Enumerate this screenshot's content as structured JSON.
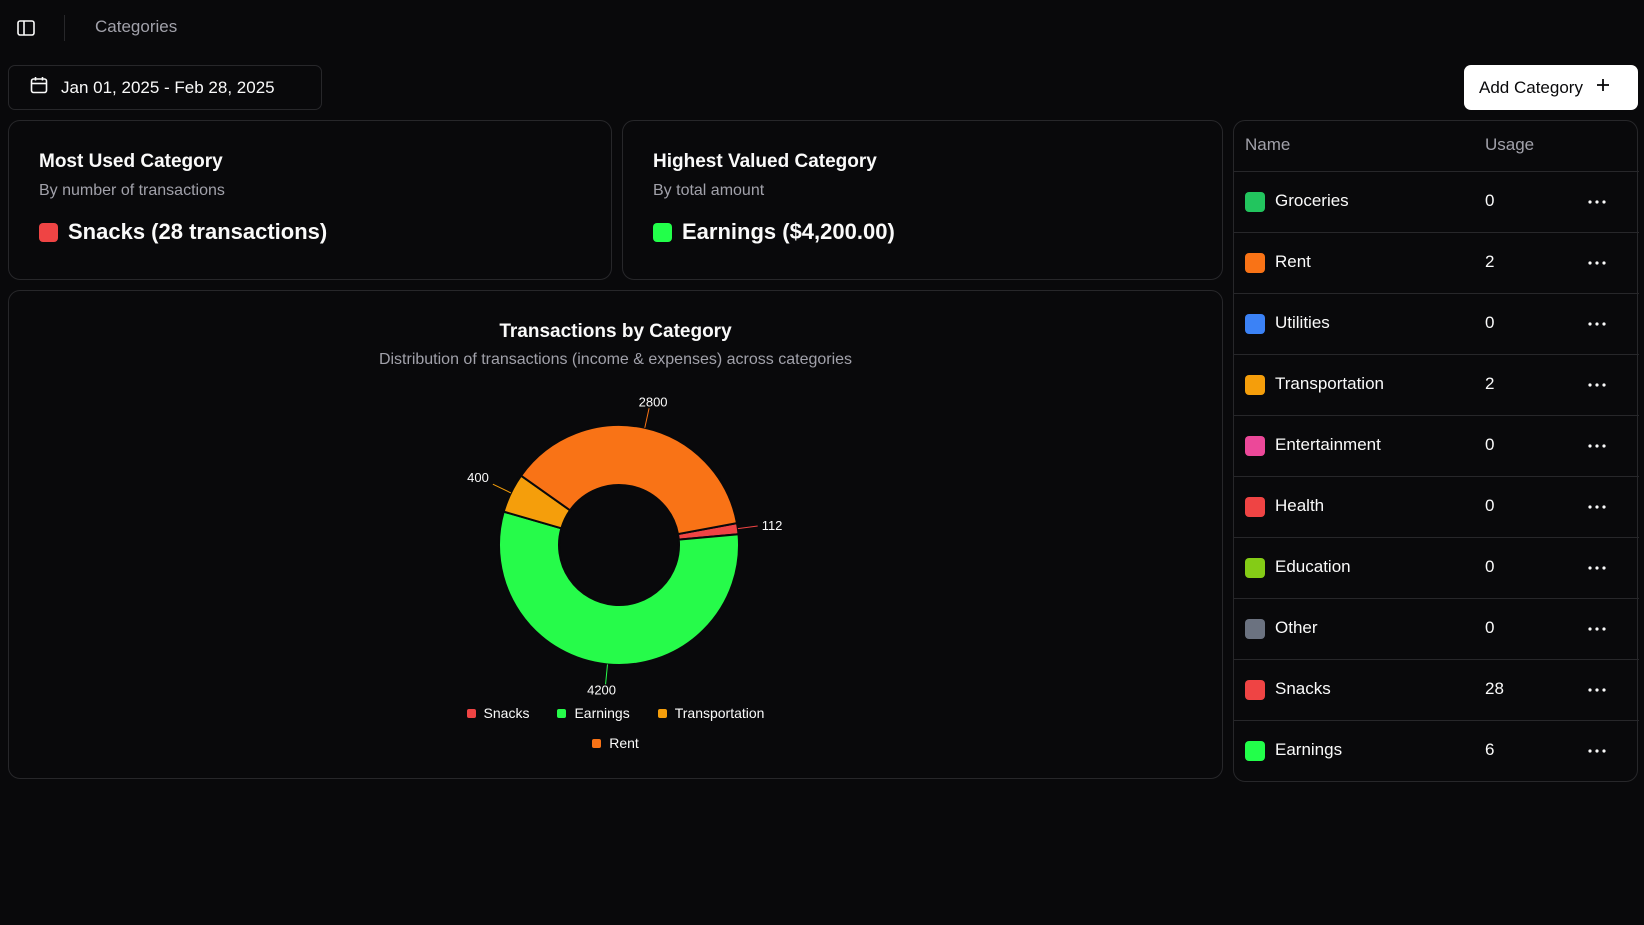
{
  "header": {
    "breadcrumb": "Categories"
  },
  "toolbar": {
    "date_range": "Jan 01, 2025 - Feb 28, 2025",
    "add_label": "Add Category"
  },
  "most_used": {
    "title": "Most Used Category",
    "subtitle": "By number of transactions",
    "value": "Snacks (28 transactions)",
    "color": "#ef4444"
  },
  "highest_valued": {
    "title": "Highest Valued Category",
    "subtitle": "By total amount",
    "value": "Earnings ($4,200.00)",
    "color": "#22ff4a"
  },
  "chart": {
    "title": "Transactions by Category",
    "subtitle": "Distribution of transactions (income & expenses) across categories"
  },
  "chart_data": {
    "type": "pie",
    "donut": true,
    "title": "Transactions by Category",
    "subtitle": "Distribution of transactions (income & expenses) across categories",
    "series": [
      {
        "name": "Snacks",
        "value": 112,
        "label": "112",
        "color": "#ef4444"
      },
      {
        "name": "Earnings",
        "value": 4200,
        "label": "4200",
        "color": "#26fb4a"
      },
      {
        "name": "Transportation",
        "value": 400,
        "label": "400",
        "color": "#f59e0b"
      },
      {
        "name": "Rent",
        "value": 2800,
        "label": "2800",
        "color": "#f97316"
      }
    ],
    "legend_position": "bottom"
  },
  "table": {
    "headers": {
      "name": "Name",
      "usage": "Usage"
    },
    "rows": [
      {
        "name": "Groceries",
        "usage": "0",
        "color": "#22c55e"
      },
      {
        "name": "Rent",
        "usage": "2",
        "color": "#f97316"
      },
      {
        "name": "Utilities",
        "usage": "0",
        "color": "#3b82f6"
      },
      {
        "name": "Transportation",
        "usage": "2",
        "color": "#f59e0b"
      },
      {
        "name": "Entertainment",
        "usage": "0",
        "color": "#ec4899"
      },
      {
        "name": "Health",
        "usage": "0",
        "color": "#ef4444"
      },
      {
        "name": "Education",
        "usage": "0",
        "color": "#84cc16"
      },
      {
        "name": "Other",
        "usage": "0",
        "color": "#6b7280"
      },
      {
        "name": "Snacks",
        "usage": "28",
        "color": "#ef4444"
      },
      {
        "name": "Earnings",
        "usage": "6",
        "color": "#22ff4a"
      }
    ]
  },
  "icons": {
    "sidebar_toggle": "panel-left-icon",
    "calendar": "calendar-icon",
    "add": "plus-icon",
    "row_action": "more-horizontal-icon"
  }
}
